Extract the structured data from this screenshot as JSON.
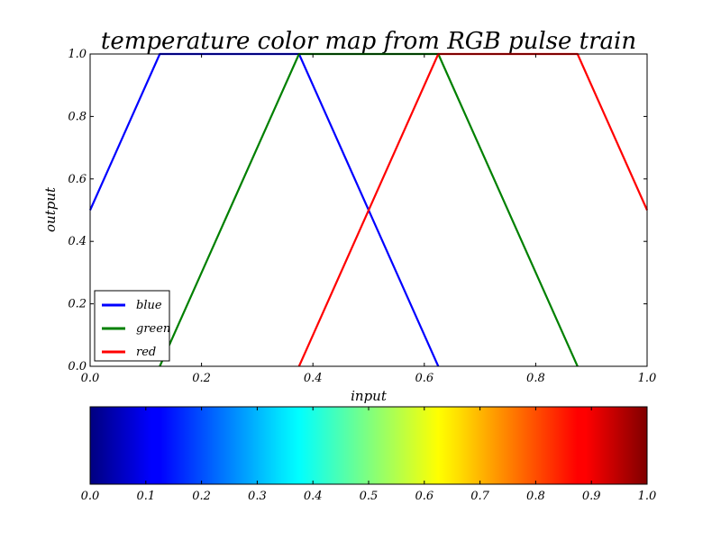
{
  "chart_data": [
    {
      "type": "line",
      "title": "temperature color map from RGB pulse train",
      "xlabel": "input",
      "ylabel": "output",
      "xlim": [
        0.0,
        1.0
      ],
      "ylim": [
        0.0,
        1.0
      ],
      "x_ticks": [
        "0.0",
        "0.2",
        "0.4",
        "0.6",
        "0.8",
        "1.0"
      ],
      "y_ticks": [
        "0.0",
        "0.2",
        "0.4",
        "0.6",
        "0.8",
        "1.0"
      ],
      "grid": false,
      "legend": "bottom-left",
      "series": [
        {
          "name": "blue",
          "color": "#0000ff",
          "x": [
            0.0,
            0.125,
            0.375,
            0.625
          ],
          "y": [
            0.5,
            1.0,
            1.0,
            0.0
          ]
        },
        {
          "name": "green",
          "color": "#008000",
          "x": [
            0.125,
            0.375,
            0.625,
            0.875
          ],
          "y": [
            0.0,
            1.0,
            1.0,
            0.0
          ]
        },
        {
          "name": "red",
          "color": "#ff0000",
          "x": [
            0.375,
            0.625,
            0.875,
            1.0
          ],
          "y": [
            0.0,
            1.0,
            1.0,
            0.5
          ]
        }
      ]
    },
    {
      "type": "heatmap",
      "colormap": "jet",
      "range": [
        0.0,
        1.0
      ],
      "ticks": [
        "0.0",
        "0.1",
        "0.2",
        "0.3",
        "0.4",
        "0.5",
        "0.6",
        "0.7",
        "0.8",
        "0.9",
        "1.0"
      ]
    }
  ]
}
